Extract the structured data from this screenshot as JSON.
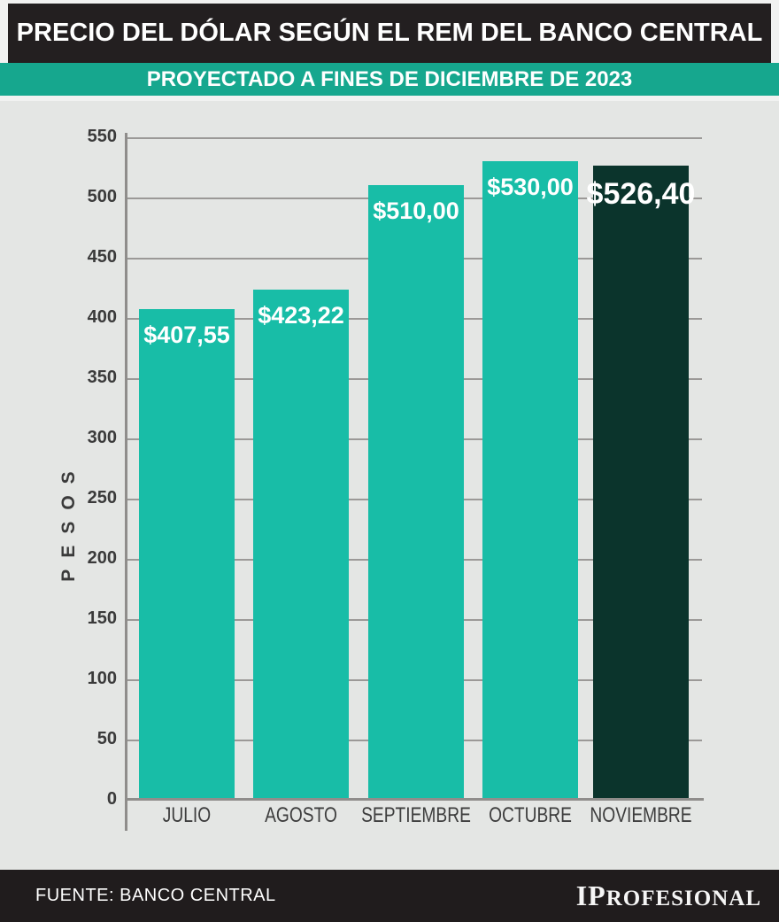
{
  "header": {
    "title": "PRECIO DEL DÓLAR SEGÚN EL REM DEL BANCO CENTRAL",
    "subtitle": "PROYECTADO A FINES DE DICIEMBRE DE 2023"
  },
  "chart_data": {
    "type": "bar",
    "categories": [
      "JULIO",
      "AGOSTO",
      "SEPTIEMBRE",
      "OCTUBRE",
      "NOVIEMBRE"
    ],
    "values": [
      407.55,
      423.22,
      510.0,
      530.0,
      526.4
    ],
    "value_labels": [
      "$407,55",
      "$423,22",
      "$510,00",
      "$530,00",
      "$526,40"
    ],
    "title": "PRECIO DEL DÓLAR SEGÚN EL REM DEL BANCO CENTRAL",
    "subtitle": "PROYECTADO A FINES DE DICIEMBRE DE 2023",
    "xlabel": "",
    "ylabel": "PESOS",
    "ylim": [
      0,
      550
    ],
    "ytick_step": 50,
    "yticks": [
      0,
      50,
      100,
      150,
      200,
      250,
      300,
      350,
      400,
      450,
      500,
      550
    ],
    "grid": true,
    "legend": false,
    "bar_colors": [
      "#18bda7",
      "#18bda7",
      "#18bda7",
      "#18bda7",
      "#0b342c"
    ],
    "highlight_index": 4
  },
  "colors": {
    "header_background": "#231f20",
    "subtitle_background": "#16a78e",
    "bar_teal": "#18bda7",
    "bar_dark": "#0b342c",
    "chart_background": "#e4e6e4",
    "gridline": "#9b9997",
    "footer_background": "#201c1d",
    "value_label_text": "#ffffff"
  },
  "footer": {
    "source": "FUENTE: BANCO CENTRAL",
    "brand_prefix": "IP",
    "brand_suffix": "ROFESIONAL"
  }
}
